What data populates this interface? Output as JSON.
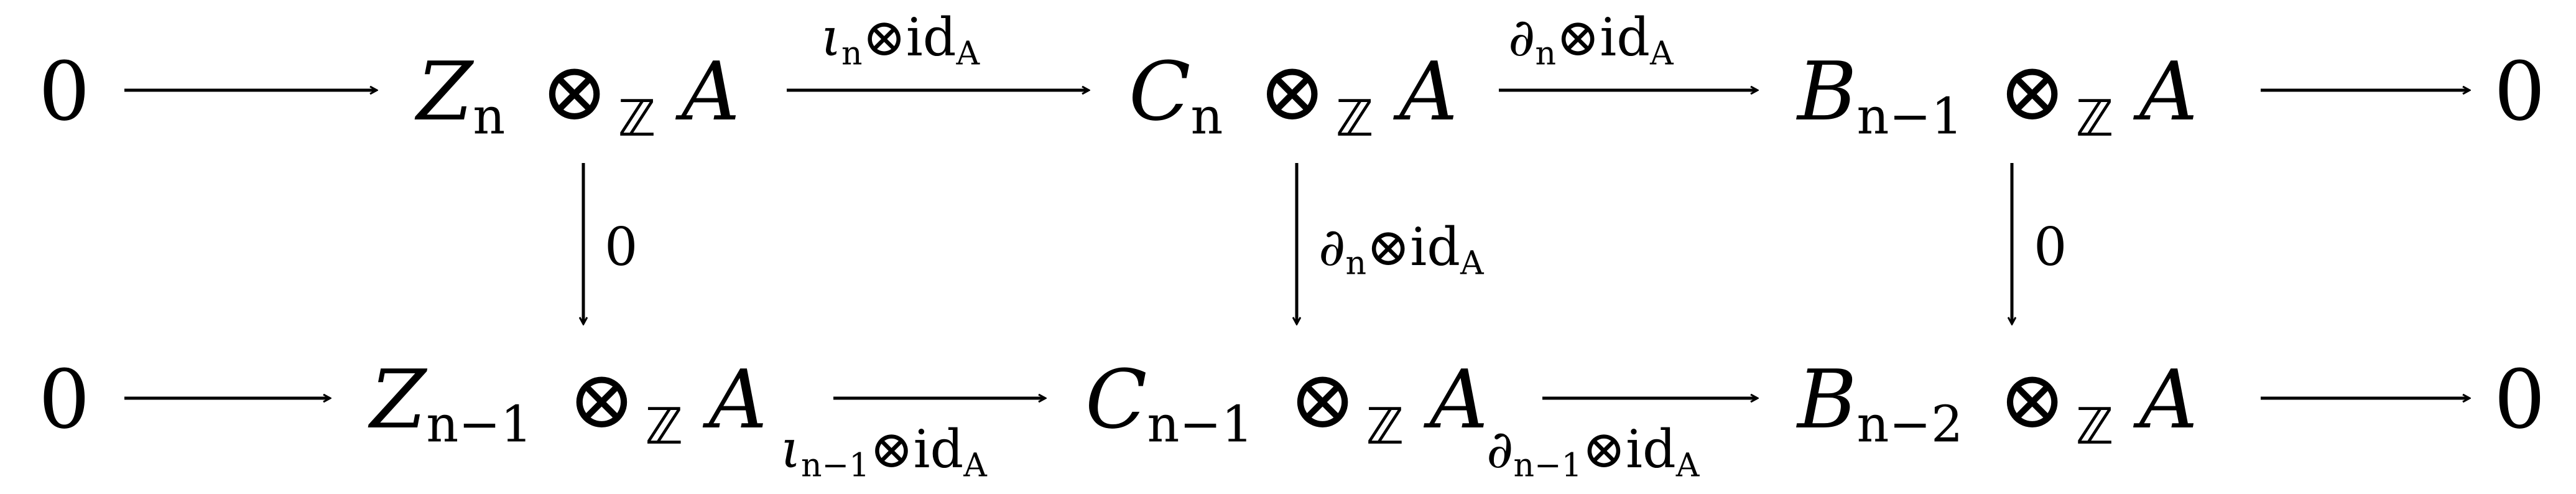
{
  "diagram": {
    "top_row": {
      "zero_left": "0",
      "Z": {
        "letter": "Z",
        "index": "n",
        "tensor": "⊗",
        "ring": "ℤ",
        "module": "A"
      },
      "C": {
        "letter": "C",
        "index": "n",
        "tensor": "⊗",
        "ring": "ℤ",
        "module": "A"
      },
      "B": {
        "letter": "B",
        "index": "n−1",
        "tensor": "⊗",
        "ring": "ℤ",
        "module": "A"
      },
      "zero_right": "0"
    },
    "bottom_row": {
      "zero_left": "0",
      "Z": {
        "letter": "Z",
        "index": "n−1",
        "tensor": "⊗",
        "ring": "ℤ",
        "module": "A"
      },
      "C": {
        "letter": "C",
        "index": "n−1",
        "tensor": "⊗",
        "ring": "ℤ",
        "module": "A"
      },
      "B": {
        "letter": "B",
        "index": "n−2",
        "tensor": "⊗",
        "ring": "ℤ",
        "module": "A"
      },
      "zero_right": "0"
    },
    "labels": {
      "top_iota": {
        "map": "ι",
        "index": "n",
        "tensor": "⊗",
        "id": "id",
        "id_sub": "A"
      },
      "top_partial": {
        "map": "∂",
        "index": "n",
        "tensor": "⊗",
        "id": "id",
        "id_sub": "A"
      },
      "vert_left": "0",
      "vert_mid": {
        "map": "∂",
        "index": "n",
        "tensor": "⊗",
        "id": "id",
        "id_sub": "A"
      },
      "vert_right": "0",
      "bottom_iota": {
        "map": "ι",
        "index": "n−1",
        "tensor": "⊗",
        "id": "id",
        "id_sub": "A"
      },
      "bottom_partial": {
        "map": "∂",
        "index": "n−1",
        "tensor": "⊗",
        "id": "id",
        "id_sub": "A"
      }
    }
  }
}
